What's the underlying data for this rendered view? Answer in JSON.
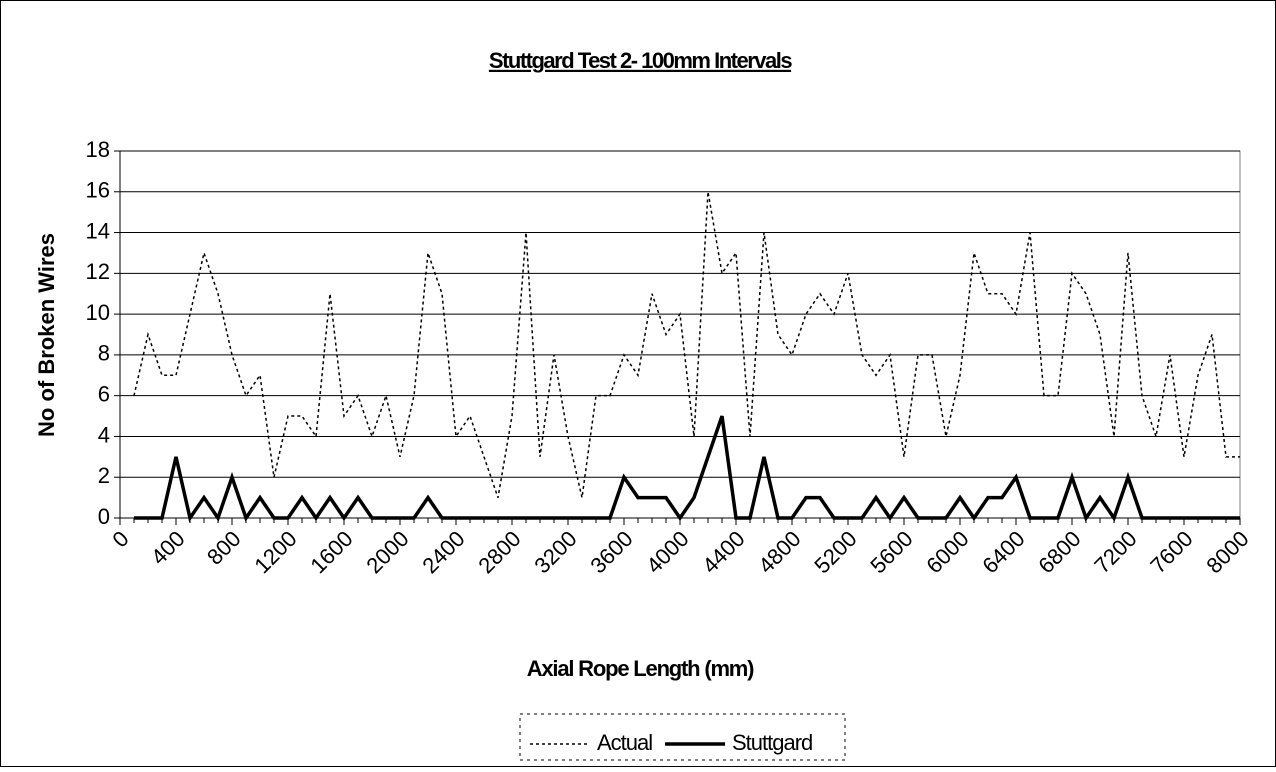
{
  "chart_data": {
    "type": "line",
    "title": "Stuttgard Test 2- 100mm Intervals",
    "xlabel": "Axial Rope Length (mm)",
    "ylabel": "No of Broken Wires",
    "x": [
      100,
      200,
      300,
      400,
      500,
      600,
      700,
      800,
      900,
      1000,
      1100,
      1200,
      1300,
      1400,
      1500,
      1600,
      1700,
      1800,
      1900,
      2000,
      2100,
      2200,
      2300,
      2400,
      2500,
      2600,
      2700,
      2800,
      2900,
      3000,
      3100,
      3200,
      3300,
      3400,
      3500,
      3600,
      3700,
      3800,
      3900,
      4000,
      4100,
      4200,
      4300,
      4400,
      4500,
      4600,
      4700,
      4800,
      4900,
      5000,
      5100,
      5200,
      5300,
      5400,
      5500,
      5600,
      5700,
      5800,
      5900,
      6000,
      6100,
      6200,
      6300,
      6400,
      6500,
      6600,
      6700,
      6800,
      6900,
      7000,
      7100,
      7200,
      7300,
      7400,
      7500,
      7600,
      7700,
      7800,
      7900,
      8000
    ],
    "series": [
      {
        "name": "Actual",
        "color": "#000000",
        "dashed": true,
        "values": [
          6,
          9,
          7,
          7,
          10,
          13,
          11,
          8,
          6,
          7,
          2,
          5,
          5,
          4,
          11,
          5,
          6,
          4,
          6,
          3,
          6,
          13,
          11,
          4,
          5,
          3,
          1,
          5,
          14,
          3,
          8,
          4,
          1,
          6,
          6,
          8,
          7,
          11,
          9,
          10,
          4,
          16,
          12,
          13,
          4,
          14,
          9,
          8,
          10,
          11,
          10,
          12,
          8,
          7,
          8,
          3,
          8,
          8,
          4,
          7,
          13,
          11,
          11,
          10,
          14,
          6,
          6,
          12,
          11,
          9,
          4,
          13,
          6,
          4,
          8,
          3,
          7,
          9,
          3,
          3
        ]
      },
      {
        "name": "Stuttgard",
        "color": "#000000",
        "dashed": false,
        "values": [
          0,
          0,
          0,
          3,
          0,
          1,
          0,
          2,
          0,
          1,
          0,
          0,
          1,
          0,
          1,
          0,
          1,
          0,
          0,
          0,
          0,
          1,
          0,
          0,
          0,
          0,
          0,
          0,
          0,
          0,
          0,
          0,
          0,
          0,
          0,
          2,
          1,
          1,
          1,
          0,
          1,
          3,
          5,
          0,
          0,
          3,
          0,
          0,
          1,
          1,
          0,
          0,
          0,
          1,
          0,
          1,
          0,
          0,
          0,
          1,
          0,
          1,
          1,
          2,
          0,
          0,
          0,
          2,
          0,
          1,
          0,
          2,
          0,
          0,
          0,
          0,
          0,
          0,
          0,
          0
        ]
      }
    ],
    "xlim": [
      0,
      8000
    ],
    "xticks": [
      0,
      400,
      800,
      1200,
      1600,
      2000,
      2400,
      2800,
      3200,
      3600,
      4000,
      4400,
      4800,
      5200,
      5600,
      6000,
      6400,
      6800,
      7200,
      7600,
      8000
    ],
    "ylim": [
      0,
      18
    ],
    "yticks": [
      0,
      2,
      4,
      6,
      8,
      10,
      12,
      14,
      16,
      18
    ],
    "grid": true,
    "legend": "bottom"
  }
}
